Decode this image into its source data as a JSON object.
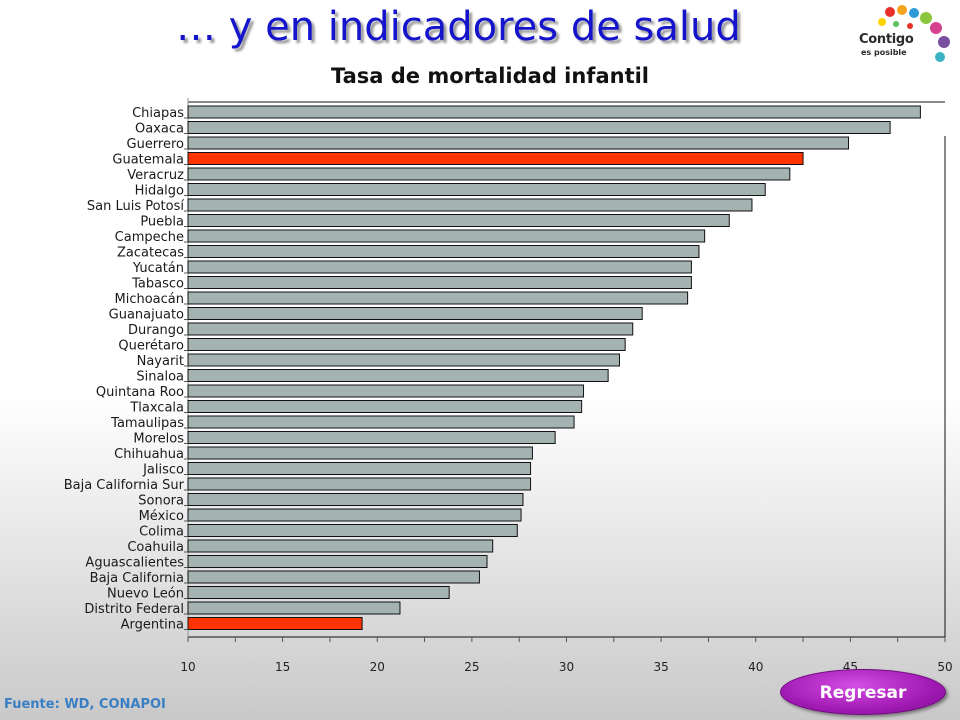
{
  "slide": {
    "title": "… y en indicadores de salud",
    "source": "Fuente: WD, CONAPOI",
    "back_button": "Regresar"
  },
  "logo": {
    "word": "Contigo",
    "sub": "es posible",
    "icon": "colorful-hands-icon"
  },
  "colors": {
    "title": "#1414cc",
    "bar_default": "#a4b2b2",
    "bar_highlight": "#ff3300",
    "button": "#a11ab4",
    "source_text": "#3a7ec4"
  },
  "chart_data": {
    "type": "bar",
    "orientation": "horizontal",
    "title": "Tasa de mortalidad infantil",
    "xlabel": "",
    "ylabel": "",
    "xlim": [
      10,
      50
    ],
    "xticks": [
      10,
      15,
      20,
      25,
      30,
      35,
      40,
      45,
      50
    ],
    "grid": false,
    "categories": [
      "Chiapas",
      "Oaxaca",
      "Guerrero",
      "Guatemala",
      "Veracruz",
      "Hidalgo",
      "San Luis Potosí",
      "Puebla",
      "Campeche",
      "Zacatecas",
      "Yucatán",
      "Tabasco",
      "Michoacán",
      "Guanajuato",
      "Durango",
      "Querétaro",
      "Nayarit",
      "Sinaloa",
      "Quintana Roo",
      "Tlaxcala",
      "Tamaulipas",
      "Morelos",
      "Chihuahua",
      "Jalisco",
      "Baja California Sur",
      "Sonora",
      "México",
      "Colima",
      "Coahuila",
      "Aguascalientes",
      "Baja California",
      "Nuevo León",
      "Distrito Federal",
      "Argentina"
    ],
    "values": [
      48.7,
      47.1,
      44.9,
      42.5,
      41.8,
      40.5,
      39.8,
      38.6,
      37.3,
      37.0,
      36.6,
      36.6,
      36.4,
      34.0,
      33.5,
      33.1,
      32.8,
      32.2,
      30.9,
      30.8,
      30.4,
      29.4,
      28.2,
      28.1,
      28.1,
      27.7,
      27.6,
      27.4,
      26.1,
      25.8,
      25.4,
      23.8,
      21.2,
      19.2
    ],
    "highlight": [
      "Guatemala",
      "Argentina"
    ]
  }
}
